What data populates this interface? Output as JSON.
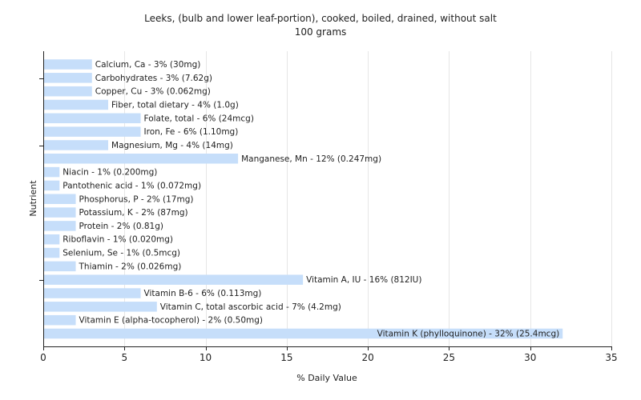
{
  "chart_data": {
    "type": "bar",
    "orientation": "horizontal",
    "title": "Leeks, (bulb and lower leaf-portion), cooked, boiled, drained, without salt",
    "subtitle": "100 grams",
    "xlabel": "% Daily Value",
    "ylabel": "Nutrient",
    "xlim": [
      0,
      35
    ],
    "xticks": [
      0,
      5,
      10,
      15,
      20,
      25,
      30,
      35
    ],
    "grid": true,
    "bar_color": "#c6defa",
    "categories": [
      "Calcium, Ca",
      "Carbohydrates",
      "Copper, Cu",
      "Fiber, total dietary",
      "Folate, total",
      "Iron, Fe",
      "Magnesium, Mg",
      "Manganese, Mn",
      "Niacin",
      "Pantothenic acid",
      "Phosphorus, P",
      "Potassium, K",
      "Protein",
      "Riboflavin",
      "Selenium, Se",
      "Thiamin",
      "Vitamin A, IU",
      "Vitamin B-6",
      "Vitamin C, total ascorbic acid",
      "Vitamin E (alpha-tocopherol)",
      "Vitamin K (phylloquinone)"
    ],
    "values": [
      3,
      3,
      3,
      4,
      6,
      6,
      4,
      12,
      1,
      1,
      2,
      2,
      2,
      1,
      1,
      2,
      16,
      6,
      7,
      2,
      32
    ],
    "labels": [
      "Calcium, Ca - 3% (30mg)",
      "Carbohydrates - 3% (7.62g)",
      "Copper, Cu - 3% (0.062mg)",
      "Fiber, total dietary - 4% (1.0g)",
      "Folate, total - 6% (24mcg)",
      "Iron, Fe - 6% (1.10mg)",
      "Magnesium, Mg - 4% (14mg)",
      "Manganese, Mn - 12% (0.247mg)",
      "Niacin - 1% (0.200mg)",
      "Pantothenic acid - 1% (0.072mg)",
      "Phosphorus, P - 2% (17mg)",
      "Potassium, K - 2% (87mg)",
      "Protein - 2% (0.81g)",
      "Riboflavin - 1% (0.020mg)",
      "Selenium, Se - 1% (0.5mcg)",
      "Thiamin - 2% (0.026mg)",
      "Vitamin A, IU - 16% (812IU)",
      "Vitamin B-6 - 6% (0.113mg)",
      "Vitamin C, total ascorbic acid - 7% (4.2mg)",
      "Vitamin E (alpha-tocopherol) - 2% (0.50mg)",
      "Vitamin K (phylloquinone) - 32% (25.4mcg)"
    ]
  }
}
